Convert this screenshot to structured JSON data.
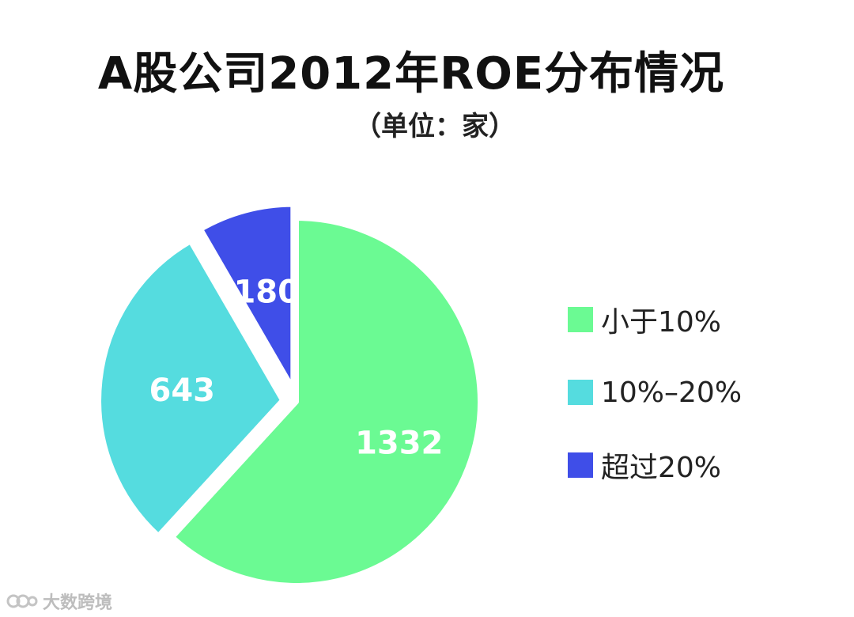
{
  "chart_data": {
    "type": "pie",
    "title": "A股公司2012年ROE分布情况",
    "subtitle": "（单位：家）",
    "categories": [
      "小于10%",
      "10%–20%",
      "超过20%"
    ],
    "values": [
      1332,
      643,
      180
    ],
    "colors": [
      "#6bfa93",
      "#55dcdf",
      "#3f4ee8"
    ],
    "legend_position": "right",
    "exploded": [
      false,
      true,
      true
    ]
  },
  "watermark": {
    "text": "大数跨境"
  }
}
